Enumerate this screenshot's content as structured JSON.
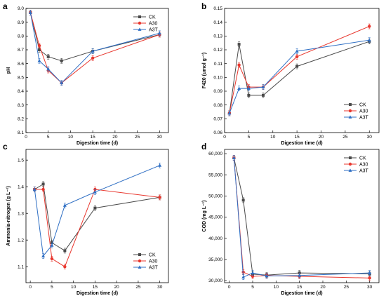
{
  "colors": {
    "CK": "#4a4a4a",
    "A30": "#e8372e",
    "A3T": "#2f6fc4"
  },
  "chart_data": [
    {
      "type": "line",
      "panel_label": "a",
      "title": "",
      "xlabel": "Digestion time (d)",
      "ylabel": "pH",
      "xlim": [
        0,
        32
      ],
      "ylim": [
        8.1,
        9.0
      ],
      "xticks": [
        0,
        5,
        10,
        15,
        20,
        25,
        30
      ],
      "yticks": [
        8.1,
        8.2,
        8.3,
        8.4,
        8.5,
        8.6,
        8.7,
        8.8,
        8.9,
        9.0
      ],
      "xtick_labels": [
        "0",
        "5",
        "10",
        "15",
        "20",
        "25",
        "30"
      ],
      "ytick_labels": [
        "8.1",
        "8.2",
        "8.3",
        "8.4",
        "8.5",
        "8.6",
        "8.7",
        "8.8",
        "8.9",
        "9.0"
      ],
      "legend_position": "top-right",
      "series": [
        {
          "name": "CK",
          "x": [
            1,
            3,
            5,
            8,
            15,
            30
          ],
          "y": [
            8.97,
            8.7,
            8.65,
            8.62,
            8.69,
            8.81
          ]
        },
        {
          "name": "A30",
          "x": [
            1,
            3,
            5,
            8,
            15,
            30
          ],
          "y": [
            8.97,
            8.73,
            8.55,
            8.46,
            8.64,
            8.81
          ]
        },
        {
          "name": "A3T",
          "x": [
            1,
            3,
            5,
            8,
            15,
            30
          ],
          "y": [
            8.97,
            8.62,
            8.56,
            8.46,
            8.69,
            8.82
          ]
        }
      ]
    },
    {
      "type": "line",
      "panel_label": "b",
      "title": "",
      "xlabel": "Digestion time (d)",
      "ylabel": "F420 (umol g⁻¹)",
      "xlim": [
        0,
        32
      ],
      "ylim": [
        0.06,
        0.15
      ],
      "xticks": [
        0,
        5,
        10,
        15,
        20,
        25,
        30
      ],
      "yticks": [
        0.06,
        0.07,
        0.08,
        0.09,
        0.1,
        0.11,
        0.12,
        0.13,
        0.14,
        0.15
      ],
      "xtick_labels": [
        "0",
        "5",
        "10",
        "15",
        "20",
        "25",
        "30"
      ],
      "ytick_labels": [
        "0.06",
        "0.07",
        "0.08",
        "0.09",
        "0.10",
        "0.11",
        "0.12",
        "0.13",
        "0.14",
        "0.15"
      ],
      "legend_position": "bottom-right",
      "series": [
        {
          "name": "CK",
          "x": [
            1,
            3,
            5,
            8,
            15,
            30
          ],
          "y": [
            0.074,
            0.124,
            0.087,
            0.087,
            0.108,
            0.126
          ]
        },
        {
          "name": "A30",
          "x": [
            1,
            3,
            5,
            8,
            15,
            30
          ],
          "y": [
            0.074,
            0.109,
            0.093,
            0.093,
            0.115,
            0.137
          ]
        },
        {
          "name": "A3T",
          "x": [
            1,
            3,
            5,
            8,
            15,
            30
          ],
          "y": [
            0.074,
            0.092,
            0.092,
            0.093,
            0.119,
            0.127
          ]
        }
      ]
    },
    {
      "type": "line",
      "panel_label": "c",
      "title": "",
      "xlabel": "Digestion time (d)",
      "ylabel": "Ammonia-nitrogen (g L⁻¹)",
      "xlim": [
        -1,
        32
      ],
      "ylim": [
        1.04,
        1.54
      ],
      "xticks": [
        0,
        5,
        10,
        15,
        20,
        25,
        30
      ],
      "yticks": [
        1.1,
        1.2,
        1.3,
        1.4,
        1.5
      ],
      "xtick_labels": [
        "0",
        "5",
        "10",
        "15",
        "20",
        "25",
        "30"
      ],
      "ytick_labels": [
        "1.1",
        "1.2",
        "1.3",
        "1.4",
        "1.5"
      ],
      "legend_position": "bottom-right",
      "series": [
        {
          "name": "CK",
          "x": [
            1,
            3,
            5,
            8,
            15,
            30
          ],
          "y": [
            1.39,
            1.41,
            1.19,
            1.16,
            1.32,
            1.36
          ]
        },
        {
          "name": "A30",
          "x": [
            1,
            3,
            5,
            8,
            15,
            30
          ],
          "y": [
            1.39,
            1.39,
            1.13,
            1.1,
            1.39,
            1.36
          ]
        },
        {
          "name": "A3T",
          "x": [
            1,
            3,
            5,
            8,
            15,
            30
          ],
          "y": [
            1.39,
            1.14,
            1.18,
            1.33,
            1.38,
            1.48
          ]
        }
      ]
    },
    {
      "type": "line",
      "panel_label": "d",
      "title": "",
      "xlabel": "Digestion time (d)",
      "ylabel": "COD (mg L⁻¹)",
      "xlim": [
        -1,
        32
      ],
      "ylim": [
        29500,
        61000
      ],
      "xticks": [
        0,
        5,
        10,
        15,
        20,
        25,
        30
      ],
      "yticks": [
        30000,
        35000,
        40000,
        45000,
        50000,
        55000,
        60000
      ],
      "xtick_labels": [
        "0",
        "5",
        "10",
        "15",
        "20",
        "25",
        "30"
      ],
      "ytick_labels": [
        "30,000",
        "35,000",
        "40,000",
        "45,000",
        "50,000",
        "55,000",
        "60,000"
      ],
      "legend_position": "top-right",
      "series": [
        {
          "name": "CK",
          "x": [
            1,
            3,
            5,
            8,
            15,
            30
          ],
          "y": [
            59000,
            49000,
            31500,
            31300,
            31800,
            31600
          ]
        },
        {
          "name": "A30",
          "x": [
            1,
            3,
            5,
            8,
            15,
            30
          ],
          "y": [
            59000,
            32000,
            31000,
            31200,
            31000,
            30600
          ]
        },
        {
          "name": "A3T",
          "x": [
            1,
            3,
            5,
            8,
            15,
            30
          ],
          "y": [
            59000,
            30800,
            31800,
            31100,
            31200,
            31800
          ]
        }
      ]
    }
  ]
}
